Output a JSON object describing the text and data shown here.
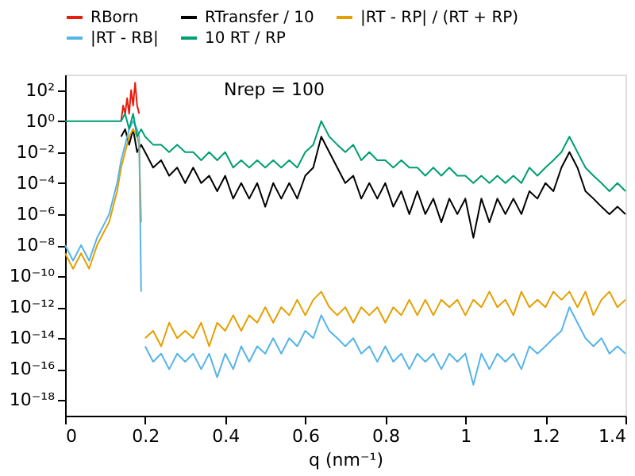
{
  "chart_data": {
    "type": "line",
    "xlabel": "q (nm⁻¹)",
    "annotations": [
      "Nrep = 100"
    ],
    "log": "y",
    "grid": false,
    "legend": "top",
    "line_style": "solid",
    "marker": "none",
    "xlim": [
      0,
      1.4
    ],
    "xticks": [
      0,
      0.2,
      0.4,
      0.6,
      0.8,
      1,
      1.2,
      1.4
    ],
    "ylim": [
      1e-19,
      1000
    ],
    "yticks": [
      {
        "value": 1e-18,
        "label": "10⁻¹⁸"
      },
      {
        "value": 1e-16,
        "label": "10⁻¹⁶"
      },
      {
        "value": 1e-14,
        "label": "10⁻¹⁴"
      },
      {
        "value": 1e-12,
        "label": "10⁻¹²"
      },
      {
        "value": 1e-10,
        "label": "10⁻¹⁰"
      },
      {
        "value": 1e-08,
        "label": "10⁻⁸"
      },
      {
        "value": 1e-06,
        "label": "10⁻⁶"
      },
      {
        "value": 0.0001,
        "label": "10⁻⁴"
      },
      {
        "value": 0.01,
        "label": "10⁻²"
      },
      {
        "value": 1,
        "label": "10⁰"
      },
      {
        "value": 100,
        "label": "10²"
      }
    ],
    "series": [
      {
        "name": "RBorn",
        "color": "#e51e10",
        "x": [
          0.14,
          0.145,
          0.15,
          0.155,
          0.16,
          0.165,
          0.17,
          0.175,
          0.18,
          0.185
        ],
        "values": [
          1,
          10,
          3,
          30,
          3,
          100,
          10,
          300,
          10,
          3
        ]
      },
      {
        "name": "RTransfer / 10",
        "color": "#000000",
        "x": [
          0.14,
          0.15,
          0.16,
          0.17,
          0.18,
          0.19,
          0.2,
          0.22,
          0.24,
          0.26,
          0.28,
          0.3,
          0.32,
          0.34,
          0.36,
          0.38,
          0.4,
          0.42,
          0.44,
          0.46,
          0.48,
          0.5,
          0.52,
          0.54,
          0.56,
          0.58,
          0.6,
          0.62,
          0.64,
          0.66,
          0.68,
          0.7,
          0.72,
          0.74,
          0.76,
          0.78,
          0.8,
          0.82,
          0.84,
          0.86,
          0.88,
          0.9,
          0.92,
          0.94,
          0.96,
          0.98,
          1.0,
          1.02,
          1.04,
          1.06,
          1.08,
          1.1,
          1.12,
          1.14,
          1.16,
          1.18,
          1.2,
          1.22,
          1.24,
          1.26,
          1.28,
          1.3,
          1.32,
          1.34,
          1.36,
          1.38,
          1.4
        ],
        "values": [
          0.1,
          0.3,
          0.03,
          0.3,
          0.01,
          0.03,
          0.01,
          0.001,
          0.003,
          0.0003,
          0.001,
          0.0001,
          0.001,
          0.0001,
          0.0003,
          3e-05,
          0.0003,
          1e-05,
          0.0001,
          1e-05,
          0.0001,
          3e-06,
          0.0001,
          1e-05,
          0.0001,
          1e-05,
          0.0003,
          0.001,
          0.1,
          0.01,
          0.001,
          0.0001,
          0.0003,
          1e-05,
          0.0001,
          1e-05,
          0.0001,
          3e-06,
          3e-05,
          1e-06,
          3e-05,
          1e-06,
          1e-05,
          3e-07,
          1e-05,
          1e-06,
          1e-05,
          3e-08,
          1e-05,
          3e-07,
          1e-05,
          1e-06,
          1e-05,
          1e-06,
          3e-05,
          1e-05,
          0.0001,
          3e-05,
          0.001,
          0.01,
          0.001,
          3e-05,
          1e-05,
          3e-06,
          1e-06,
          3e-06,
          1e-06
        ]
      },
      {
        "name": "|RT - RP| / (RT + RP)",
        "color": "#e69f00",
        "x": [
          0,
          0.02,
          0.04,
          0.06,
          0.08,
          0.1,
          0.11,
          0.12,
          0.13,
          0.14,
          0.15,
          0.16,
          0.17,
          0.18,
          0.185,
          0.19,
          0.195,
          0.2,
          0.22,
          0.24,
          0.26,
          0.28,
          0.3,
          0.32,
          0.34,
          0.36,
          0.38,
          0.4,
          0.42,
          0.44,
          0.46,
          0.48,
          0.5,
          0.52,
          0.54,
          0.56,
          0.58,
          0.6,
          0.62,
          0.64,
          0.66,
          0.68,
          0.7,
          0.72,
          0.74,
          0.76,
          0.78,
          0.8,
          0.82,
          0.84,
          0.86,
          0.88,
          0.9,
          0.92,
          0.94,
          0.96,
          0.98,
          1.0,
          1.02,
          1.04,
          1.06,
          1.08,
          1.1,
          1.12,
          1.14,
          1.16,
          1.18,
          1.2,
          1.22,
          1.24,
          1.26,
          1.28,
          1.3,
          1.32,
          1.34,
          1.36,
          1.38,
          1.4
        ],
        "values": [
          3e-09,
          3e-10,
          3e-09,
          3e-10,
          1e-08,
          1e-07,
          3e-07,
          3e-06,
          3e-05,
          0.001,
          0.01,
          0.1,
          0.3,
          0.1,
          0.03,
          3e-07,
          null,
          1e-14,
          3e-14,
          3e-15,
          1e-13,
          1e-14,
          3e-14,
          1e-14,
          1e-13,
          3e-15,
          1e-13,
          3e-14,
          3e-13,
          3e-14,
          3e-13,
          1e-13,
          1e-12,
          1e-13,
          1e-12,
          3e-13,
          3e-12,
          3e-13,
          3e-12,
          1e-11,
          1e-12,
          3e-13,
          1e-12,
          1e-13,
          1e-12,
          3e-13,
          1e-12,
          1e-13,
          1e-12,
          3e-13,
          3e-12,
          3e-13,
          3e-12,
          3e-13,
          3e-12,
          1e-12,
          3e-12,
          3e-13,
          3e-12,
          1e-12,
          1e-11,
          1e-12,
          3e-12,
          3e-13,
          1e-11,
          1e-12,
          3e-12,
          1e-12,
          1e-11,
          3e-12,
          1e-11,
          1e-12,
          1e-11,
          3e-13,
          3e-12,
          1e-11,
          1e-12,
          3e-12
        ]
      },
      {
        "name": "|RT - RB|",
        "color": "#56b4e9",
        "x": [
          0,
          0.02,
          0.04,
          0.06,
          0.08,
          0.1,
          0.11,
          0.12,
          0.13,
          0.14,
          0.15,
          0.16,
          0.17,
          0.18,
          0.185,
          0.19,
          0.195,
          0.2,
          0.22,
          0.24,
          0.26,
          0.28,
          0.3,
          0.32,
          0.34,
          0.36,
          0.38,
          0.4,
          0.42,
          0.44,
          0.46,
          0.48,
          0.5,
          0.52,
          0.54,
          0.56,
          0.58,
          0.6,
          0.62,
          0.64,
          0.66,
          0.68,
          0.7,
          0.72,
          0.74,
          0.76,
          0.78,
          0.8,
          0.82,
          0.84,
          0.86,
          0.88,
          0.9,
          0.92,
          0.94,
          0.96,
          0.98,
          1.0,
          1.02,
          1.04,
          1.06,
          1.08,
          1.1,
          1.12,
          1.14,
          1.16,
          1.18,
          1.2,
          1.22,
          1.24,
          1.26,
          1.28,
          1.3,
          1.32,
          1.34,
          1.36,
          1.38,
          1.4
        ],
        "values": [
          1e-08,
          1e-09,
          1e-08,
          1e-09,
          3e-08,
          3e-07,
          1e-06,
          1e-05,
          0.0001,
          0.003,
          0.03,
          0.3,
          1,
          0.3,
          0.1,
          1e-11,
          null,
          3e-15,
          3e-16,
          1e-15,
          1e-16,
          1e-15,
          3e-16,
          1e-15,
          1e-16,
          1e-15,
          3e-17,
          1e-15,
          1e-16,
          3e-15,
          3e-16,
          3e-15,
          1e-15,
          1e-14,
          1e-15,
          1e-14,
          3e-15,
          3e-14,
          1e-14,
          3e-13,
          3e-14,
          1e-14,
          3e-15,
          1e-14,
          1e-15,
          3e-15,
          3e-16,
          3e-15,
          3e-16,
          1e-15,
          1e-16,
          1e-15,
          3e-16,
          1e-15,
          1e-16,
          1e-15,
          3e-16,
          1e-15,
          1e-17,
          1e-15,
          1e-16,
          1e-15,
          3e-16,
          1e-15,
          1e-16,
          3e-15,
          1e-15,
          3e-15,
          1e-14,
          3e-14,
          1e-12,
          1e-13,
          1e-14,
          3e-15,
          1e-14,
          1e-15,
          3e-15,
          1e-15
        ]
      },
      {
        "name": "10 RT / RP",
        "color": "#009e73",
        "x": [
          0,
          0.1,
          0.14,
          0.15,
          0.16,
          0.17,
          0.18,
          0.19,
          0.2,
          0.22,
          0.24,
          0.26,
          0.28,
          0.3,
          0.32,
          0.34,
          0.36,
          0.38,
          0.4,
          0.42,
          0.44,
          0.46,
          0.48,
          0.5,
          0.52,
          0.54,
          0.56,
          0.58,
          0.6,
          0.62,
          0.64,
          0.66,
          0.68,
          0.7,
          0.72,
          0.74,
          0.76,
          0.78,
          0.8,
          0.82,
          0.84,
          0.86,
          0.88,
          0.9,
          0.92,
          0.94,
          0.96,
          0.98,
          1.0,
          1.02,
          1.04,
          1.06,
          1.08,
          1.1,
          1.12,
          1.14,
          1.16,
          1.18,
          1.2,
          1.22,
          1.24,
          1.26,
          1.28,
          1.3,
          1.32,
          1.34,
          1.36,
          1.38,
          1.4
        ],
        "values": [
          1,
          1,
          1,
          3,
          0.3,
          3,
          0.1,
          0.3,
          0.1,
          0.03,
          0.03,
          0.01,
          0.03,
          0.01,
          0.01,
          0.003,
          0.01,
          0.003,
          0.01,
          0.001,
          0.003,
          0.001,
          0.003,
          0.001,
          0.003,
          0.001,
          0.003,
          0.001,
          0.01,
          0.03,
          1,
          0.1,
          0.03,
          0.01,
          0.03,
          0.003,
          0.01,
          0.003,
          0.003,
          0.001,
          0.003,
          0.001,
          0.001,
          0.0003,
          0.001,
          0.0003,
          0.001,
          0.0003,
          0.0003,
          0.0001,
          0.0003,
          0.0001,
          0.0003,
          0.0001,
          0.0003,
          0.0001,
          0.001,
          0.0003,
          0.001,
          0.003,
          0.01,
          0.1,
          0.01,
          0.001,
          0.0003,
          0.0001,
          3e-05,
          0.0001,
          3e-05
        ]
      }
    ]
  }
}
